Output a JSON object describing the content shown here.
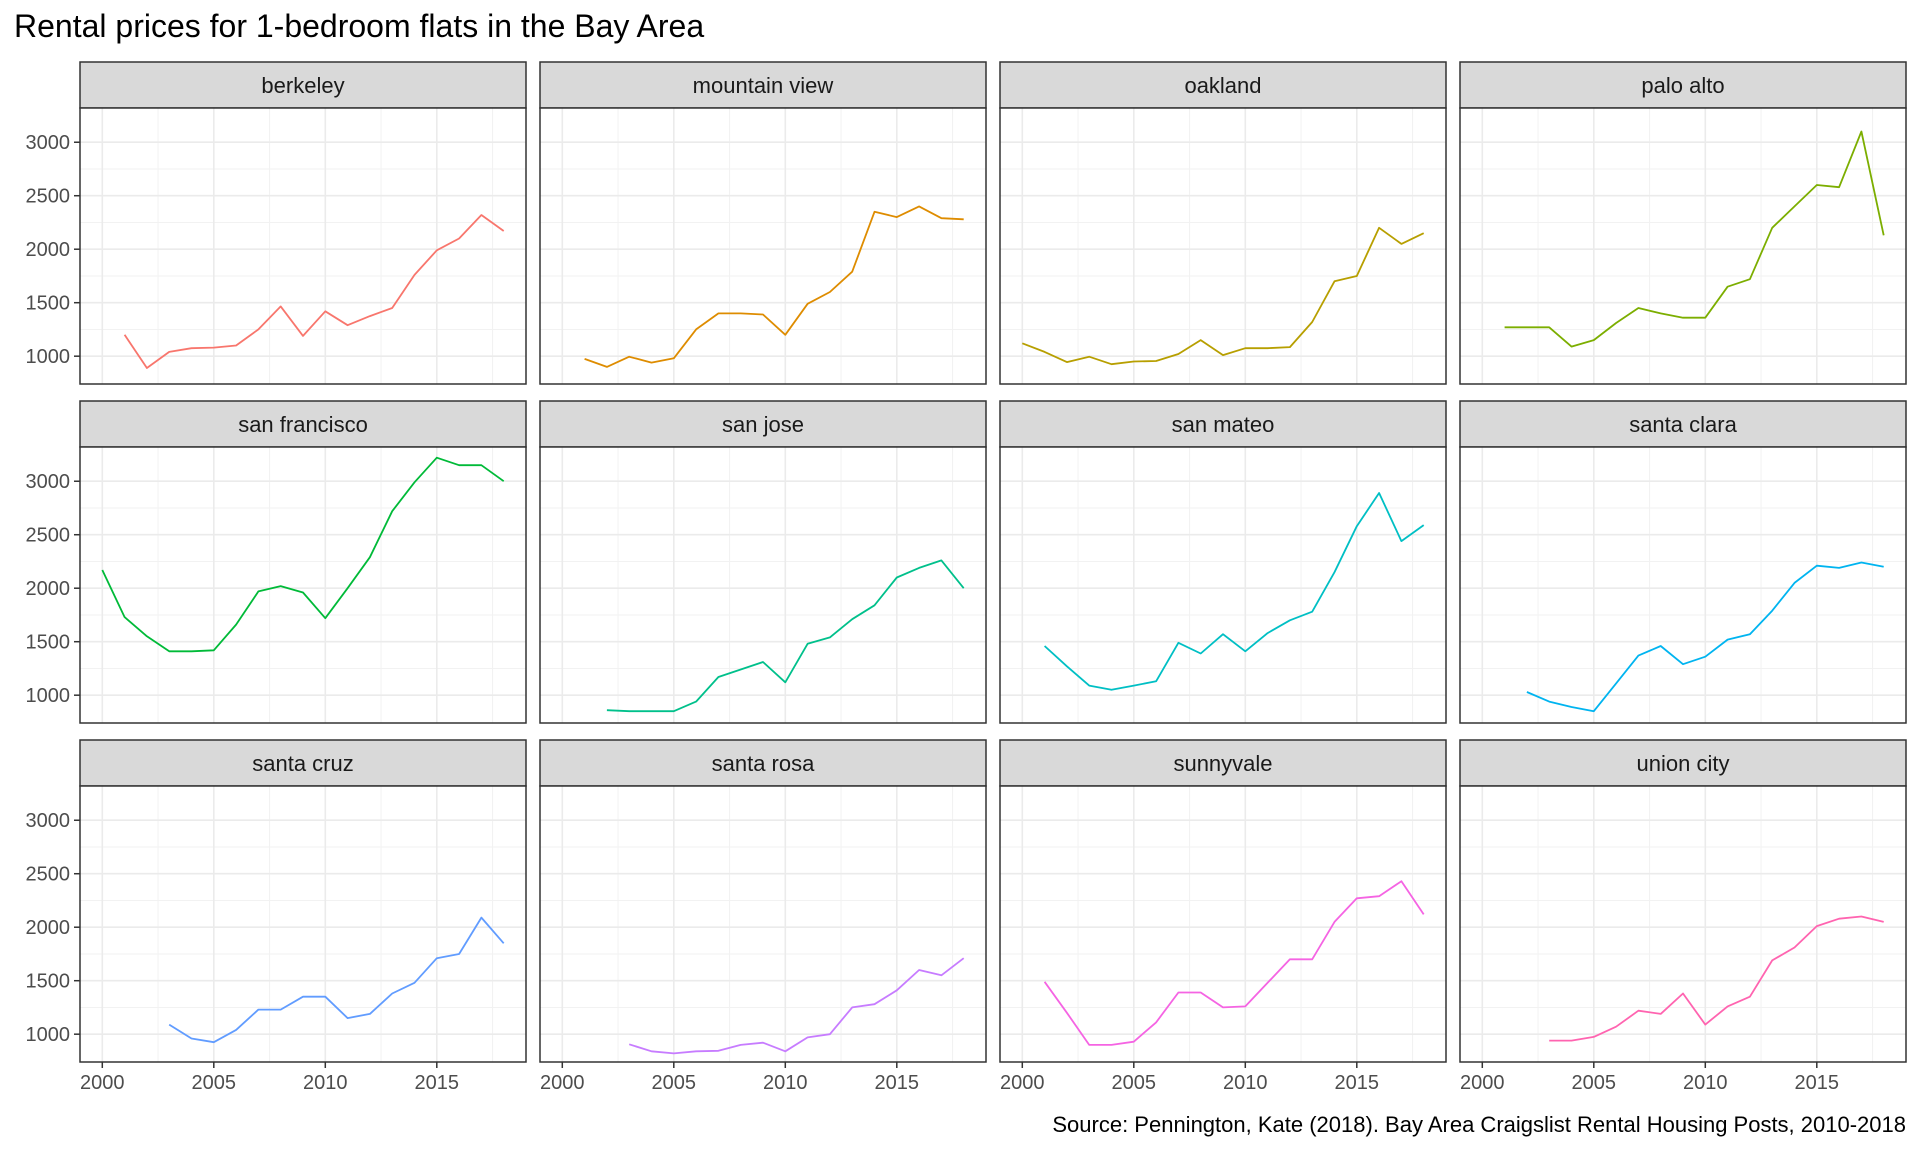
{
  "chart_data": {
    "type": "line",
    "title": "Rental prices for 1-bedroom flats in the Bay Area",
    "caption": "Source: Pennington, Kate (2018). Bay Area Craigslist Rental Housing Posts, 2010-2018",
    "xlabel": "",
    "ylabel": "",
    "xlim": [
      1999,
      2019
    ],
    "ylim": [
      740,
      3320
    ],
    "x_ticks": [
      2000,
      2005,
      2010,
      2015
    ],
    "y_ticks": [
      1000,
      1500,
      2000,
      2500,
      3000
    ],
    "grid": true,
    "legend": "none",
    "facets": [
      {
        "name": "berkeley",
        "color": "#F8766D",
        "x": [
          2001,
          2002,
          2003,
          2004,
          2005,
          2006,
          2007,
          2008,
          2009,
          2010,
          2011,
          2012,
          2013,
          2014,
          2015,
          2016,
          2017,
          2018
        ],
        "y": [
          1200,
          890,
          1040,
          1075,
          1080,
          1100,
          1250,
          1465,
          1190,
          1420,
          1290,
          1375,
          1450,
          1760,
          1990,
          2100,
          2320,
          2170
        ]
      },
      {
        "name": "mountain view",
        "color": "#DE8C00",
        "x": [
          2001,
          2002,
          2003,
          2004,
          2005,
          2006,
          2007,
          2008,
          2009,
          2010,
          2011,
          2012,
          2013,
          2014,
          2015,
          2016,
          2017,
          2018
        ],
        "y": [
          975,
          900,
          995,
          940,
          980,
          1250,
          1400,
          1400,
          1390,
          1200,
          1490,
          1600,
          1790,
          2350,
          2300,
          2400,
          2290,
          2280
        ]
      },
      {
        "name": "oakland",
        "color": "#B79F00",
        "x": [
          2000,
          2001,
          2002,
          2003,
          2004,
          2005,
          2006,
          2007,
          2008,
          2009,
          2010,
          2011,
          2012,
          2013,
          2014,
          2015,
          2016,
          2017,
          2018
        ],
        "y": [
          1120,
          1040,
          945,
          995,
          925,
          950,
          955,
          1020,
          1150,
          1010,
          1075,
          1075,
          1085,
          1320,
          1700,
          1750,
          2200,
          2050,
          2150
        ]
      },
      {
        "name": "palo alto",
        "color": "#7CAE00",
        "x": [
          2001,
          2002,
          2003,
          2004,
          2005,
          2006,
          2007,
          2008,
          2009,
          2010,
          2011,
          2012,
          2013,
          2014,
          2015,
          2016,
          2017,
          2018
        ],
        "y": [
          1270,
          1270,
          1270,
          1090,
          1150,
          1310,
          1450,
          1400,
          1360,
          1360,
          1650,
          1720,
          2200,
          2400,
          2600,
          2580,
          3100,
          2130
        ]
      },
      {
        "name": "san francisco",
        "color": "#00BA38",
        "x": [
          2000,
          2001,
          2002,
          2003,
          2004,
          2005,
          2006,
          2007,
          2008,
          2009,
          2010,
          2011,
          2012,
          2013,
          2014,
          2015,
          2016,
          2017,
          2018
        ],
        "y": [
          2170,
          1730,
          1550,
          1410,
          1410,
          1420,
          1660,
          1970,
          2020,
          1960,
          1720,
          2000,
          2290,
          2720,
          2990,
          3220,
          3150,
          3150,
          3000
        ]
      },
      {
        "name": "san jose",
        "color": "#00C08B",
        "x": [
          2002,
          2003,
          2004,
          2005,
          2006,
          2007,
          2008,
          2009,
          2010,
          2011,
          2012,
          2013,
          2014,
          2015,
          2016,
          2017,
          2018
        ],
        "y": [
          860,
          850,
          850,
          850,
          940,
          1170,
          1240,
          1310,
          1120,
          1480,
          1540,
          1710,
          1840,
          2100,
          2190,
          2260,
          2000
        ]
      },
      {
        "name": "san mateo",
        "color": "#00BFC4",
        "x": [
          2001,
          2002,
          2003,
          2004,
          2005,
          2006,
          2007,
          2008,
          2009,
          2010,
          2011,
          2012,
          2013,
          2014,
          2015,
          2016,
          2017,
          2018
        ],
        "y": [
          1460,
          1270,
          1090,
          1050,
          1090,
          1130,
          1490,
          1390,
          1570,
          1410,
          1580,
          1700,
          1780,
          2150,
          2580,
          2890,
          2440,
          2590
        ]
      },
      {
        "name": "santa clara",
        "color": "#00B4F0",
        "x": [
          2002,
          2003,
          2004,
          2005,
          2006,
          2007,
          2008,
          2009,
          2010,
          2011,
          2012,
          2013,
          2014,
          2015,
          2016,
          2017,
          2018
        ],
        "y": [
          1030,
          940,
          890,
          850,
          1110,
          1370,
          1460,
          1290,
          1360,
          1520,
          1570,
          1790,
          2050,
          2210,
          2190,
          2240,
          2200
        ]
      },
      {
        "name": "santa cruz",
        "color": "#619CFF",
        "x": [
          2003,
          2004,
          2005,
          2006,
          2007,
          2008,
          2009,
          2010,
          2011,
          2012,
          2013,
          2014,
          2015,
          2016,
          2017,
          2018
        ],
        "y": [
          1090,
          960,
          925,
          1040,
          1230,
          1230,
          1350,
          1350,
          1150,
          1190,
          1380,
          1480,
          1710,
          1750,
          2090,
          1850
        ]
      },
      {
        "name": "santa rosa",
        "color": "#C77CFF",
        "x": [
          2003,
          2004,
          2005,
          2006,
          2007,
          2008,
          2009,
          2010,
          2011,
          2012,
          2013,
          2014,
          2015,
          2016,
          2017,
          2018
        ],
        "y": [
          905,
          840,
          820,
          840,
          845,
          900,
          920,
          840,
          970,
          1000,
          1250,
          1280,
          1410,
          1600,
          1550,
          1710
        ]
      },
      {
        "name": "sunnyvale",
        "color": "#F564E3",
        "x": [
          2001,
          2002,
          2003,
          2004,
          2005,
          2006,
          2007,
          2008,
          2009,
          2010,
          2011,
          2012,
          2013,
          2014,
          2015,
          2016,
          2017,
          2018
        ],
        "y": [
          1490,
          1200,
          900,
          900,
          930,
          1110,
          1390,
          1390,
          1250,
          1260,
          1480,
          1700,
          1700,
          2050,
          2270,
          2290,
          2430,
          2120
        ]
      },
      {
        "name": "union city",
        "color": "#FF64B0",
        "x": [
          2003,
          2004,
          2005,
          2006,
          2007,
          2008,
          2009,
          2010,
          2011,
          2012,
          2013,
          2014,
          2015,
          2016,
          2017,
          2018
        ],
        "y": [
          940,
          940,
          975,
          1070,
          1220,
          1190,
          1380,
          1090,
          1260,
          1350,
          1690,
          1810,
          2010,
          2080,
          2100,
          2050
        ]
      }
    ]
  }
}
